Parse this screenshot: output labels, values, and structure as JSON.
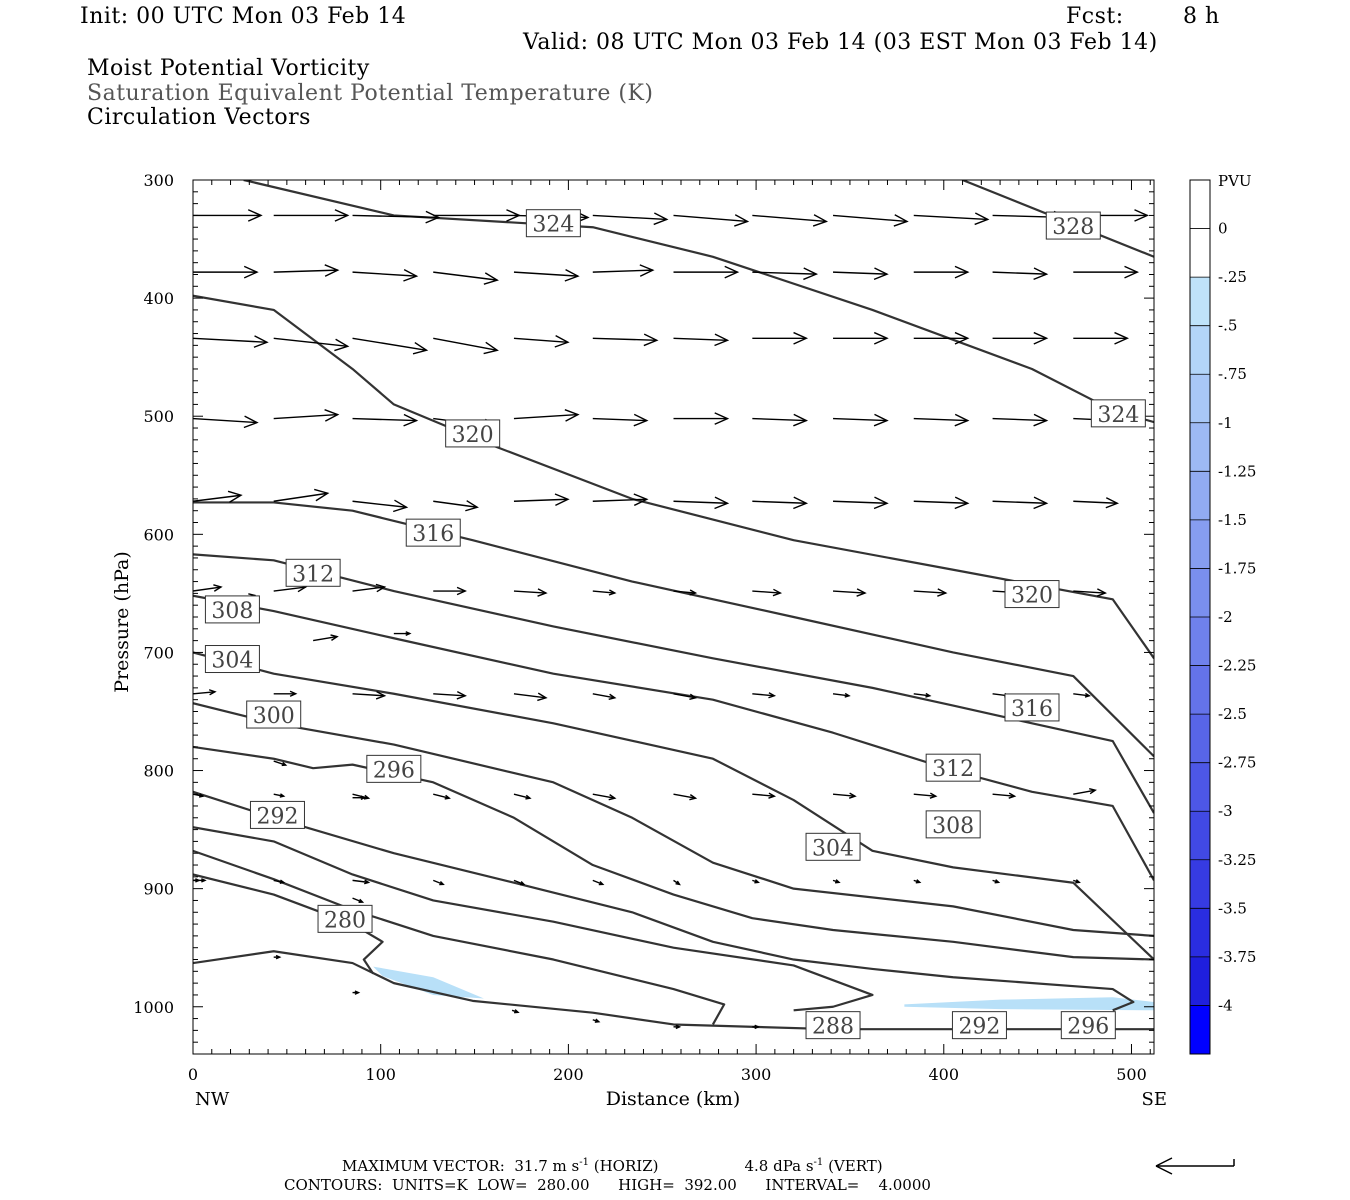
{
  "header": {
    "init": "Init: 00 UTC Mon 03 Feb 14",
    "fcst_label": "Fcst:",
    "fcst_value": "8 h",
    "valid": "Valid: 08 UTC Mon 03 Feb 14 (03 EST Mon 03 Feb 14)",
    "line1": "Moist Potential Vorticity",
    "line2": "Saturation Equivalent Potential Temperature (K)",
    "line3": "Circulation Vectors"
  },
  "footer": {
    "max_vector": "MAXIMUM VECTOR:  31.7 m s",
    "max_exp": "-1",
    "horiz": " (HORIZ)",
    "vert_val": "4.8 dPa s",
    "vert_exp": "-1",
    "vert": " (VERT)",
    "contours": "CONTOURS:  UNITS=K  LOW=  280.00      HIGH=  392.00      INTERVAL=    4.0000"
  },
  "colors": {
    "contour": "#333333",
    "vector": "#000000",
    "pv_fill": "#b8e0f8",
    "colorbar": [
      "#ffffff",
      "#ffffff",
      "#bfe3fa",
      "#b3d5f8",
      "#a8c7f6",
      "#9db9f4",
      "#91abf2",
      "#869df0",
      "#7a8fee",
      "#6f81ec",
      "#6473ea",
      "#5865e8",
      "#4d57e6",
      "#4149e4",
      "#363be2",
      "#2a2de0",
      "#1f1fde",
      "#0000ff"
    ]
  },
  "chart_data": {
    "type": "contour",
    "xlabel": "Distance (km)",
    "ylabel": "Pressure (hPa)",
    "xlim": [
      0,
      512
    ],
    "ylim": [
      300,
      1040
    ],
    "y_log": false,
    "xticks": [
      0,
      100,
      200,
      300,
      400,
      500
    ],
    "yticks": [
      300,
      400,
      500,
      600,
      700,
      800,
      900,
      1000
    ],
    "x_end_labels": [
      "NW",
      "SE"
    ],
    "colorbar": {
      "title": "PVU",
      "labels": [
        "0",
        "-.25",
        "-.5",
        "-.75",
        "-1",
        "-1.25",
        "-1.5",
        "-1.75",
        "-2",
        "-2.25",
        "-2.5",
        "-2.75",
        "-3",
        "-3.25",
        "-3.5",
        "-3.75",
        "-4"
      ]
    },
    "contour_labels": [
      {
        "text": "324",
        "x": 192,
        "y": 337
      },
      {
        "text": "328",
        "x": 469,
        "y": 339
      },
      {
        "text": "324",
        "x": 493,
        "y": 498
      },
      {
        "text": "320",
        "x": 149,
        "y": 515
      },
      {
        "text": "316",
        "x": 128,
        "y": 599
      },
      {
        "text": "312",
        "x": 64,
        "y": 633
      },
      {
        "text": "308",
        "x": 21,
        "y": 664
      },
      {
        "text": "320",
        "x": 447,
        "y": 651
      },
      {
        "text": "304",
        "x": 21,
        "y": 706
      },
      {
        "text": "316",
        "x": 447,
        "y": 747
      },
      {
        "text": "300",
        "x": 43,
        "y": 753
      },
      {
        "text": "296",
        "x": 107,
        "y": 799
      },
      {
        "text": "312",
        "x": 405,
        "y": 798
      },
      {
        "text": "292",
        "x": 45,
        "y": 838
      },
      {
        "text": "308",
        "x": 405,
        "y": 846
      },
      {
        "text": "304",
        "x": 341,
        "y": 865
      },
      {
        "text": "280",
        "x": 81,
        "y": 926
      },
      {
        "text": "288",
        "x": 341,
        "y": 1016
      },
      {
        "text": "292",
        "x": 419,
        "y": 1016
      },
      {
        "text": "296",
        "x": 477,
        "y": 1016
      }
    ],
    "contours": [
      [
        [
          27,
          300
        ],
        [
          107,
          330
        ],
        [
          213,
          340
        ],
        [
          277,
          365
        ],
        [
          362,
          410
        ],
        [
          447,
          460
        ],
        [
          490,
          495
        ],
        [
          512,
          505
        ]
      ],
      [
        [
          410,
          300
        ],
        [
          512,
          365
        ]
      ],
      [
        [
          0,
          398
        ],
        [
          43,
          410
        ],
        [
          85,
          460
        ],
        [
          107,
          490
        ],
        [
          160,
          525
        ],
        [
          234,
          570
        ],
        [
          320,
          605
        ],
        [
          405,
          630
        ],
        [
          490,
          655
        ],
        [
          512,
          705
        ]
      ],
      [
        [
          0,
          573
        ],
        [
          43,
          573
        ],
        [
          85,
          580
        ],
        [
          149,
          605
        ],
        [
          234,
          640
        ],
        [
          320,
          670
        ],
        [
          405,
          700
        ],
        [
          469,
          720
        ],
        [
          512,
          788
        ]
      ],
      [
        [
          0,
          617
        ],
        [
          43,
          622
        ],
        [
          107,
          648
        ],
        [
          192,
          678
        ],
        [
          277,
          705
        ],
        [
          362,
          730
        ],
        [
          405,
          745
        ],
        [
          447,
          760
        ],
        [
          490,
          775
        ],
        [
          512,
          836
        ]
      ],
      [
        [
          0,
          652
        ],
        [
          43,
          665
        ],
        [
          107,
          688
        ],
        [
          192,
          718
        ],
        [
          277,
          740
        ],
        [
          341,
          768
        ],
        [
          405,
          800
        ],
        [
          447,
          818
        ],
        [
          490,
          830
        ],
        [
          512,
          893
        ]
      ],
      [
        [
          0,
          700
        ],
        [
          43,
          718
        ],
        [
          107,
          735
        ],
        [
          192,
          760
        ],
        [
          277,
          790
        ],
        [
          320,
          825
        ],
        [
          362,
          868
        ],
        [
          405,
          882
        ],
        [
          469,
          895
        ],
        [
          512,
          960
        ]
      ],
      [
        [
          0,
          743
        ],
        [
          43,
          760
        ],
        [
          107,
          778
        ],
        [
          192,
          810
        ],
        [
          234,
          840
        ],
        [
          277,
          878
        ],
        [
          320,
          900
        ],
        [
          405,
          915
        ],
        [
          469,
          935
        ],
        [
          512,
          940
        ]
      ],
      [
        [
          0,
          780
        ],
        [
          43,
          790
        ],
        [
          64,
          798
        ],
        [
          85,
          795
        ],
        [
          128,
          810
        ],
        [
          171,
          840
        ],
        [
          213,
          880
        ],
        [
          256,
          905
        ],
        [
          298,
          925
        ],
        [
          341,
          935
        ],
        [
          405,
          945
        ],
        [
          469,
          958
        ],
        [
          512,
          960
        ]
      ],
      [
        [
          0,
          818
        ],
        [
          43,
          840
        ],
        [
          107,
          870
        ],
        [
          171,
          895
        ],
        [
          234,
          920
        ],
        [
          277,
          945
        ],
        [
          320,
          960
        ],
        [
          362,
          968
        ],
        [
          405,
          975
        ],
        [
          490,
          985
        ],
        [
          501,
          996
        ],
        [
          490,
          1003
        ]
      ],
      [
        [
          0,
          848
        ],
        [
          43,
          860
        ],
        [
          85,
          888
        ],
        [
          128,
          910
        ],
        [
          192,
          928
        ],
        [
          256,
          950
        ],
        [
          320,
          965
        ],
        [
          362,
          990
        ],
        [
          341,
          1000
        ],
        [
          320,
          1003
        ]
      ],
      [
        [
          0,
          868
        ],
        [
          43,
          892
        ],
        [
          85,
          918
        ],
        [
          128,
          940
        ],
        [
          192,
          960
        ],
        [
          256,
          985
        ],
        [
          283,
          998
        ],
        [
          277,
          1015
        ]
      ],
      [
        [
          0,
          888
        ],
        [
          43,
          905
        ],
        [
          85,
          930
        ],
        [
          101,
          945
        ],
        [
          91,
          960
        ],
        [
          96,
          972
        ]
      ],
      [
        [
          0,
          963
        ],
        [
          43,
          953
        ],
        [
          85,
          963
        ],
        [
          107,
          980
        ],
        [
          149,
          995
        ],
        [
          213,
          1005
        ],
        [
          256,
          1015
        ],
        [
          341,
          1019
        ],
        [
          512,
          1019
        ]
      ]
    ],
    "pv_regions": [
      {
        "min": -0.5,
        "max": -0.25,
        "polygon": [
          [
            96,
            966
          ],
          [
            128,
            975
          ],
          [
            155,
            993
          ],
          [
            128,
            990
          ],
          [
            101,
            974
          ]
        ]
      },
      {
        "min": -0.5,
        "max": -0.25,
        "polygon": [
          [
            379,
            998
          ],
          [
            430,
            994
          ],
          [
            490,
            992
          ],
          [
            512,
            996
          ],
          [
            512,
            1003
          ],
          [
            430,
            1002
          ],
          [
            379,
            1000
          ]
        ]
      }
    ],
    "vectors": {
      "rows": [
        330,
        378,
        434,
        502,
        572,
        648,
        735,
        820,
        893
      ],
      "cols": [
        0,
        43,
        85,
        128,
        171,
        213,
        256,
        298,
        341,
        384,
        426,
        469
      ],
      "u": [
        [
          34,
          37,
          43,
          43,
          37,
          37,
          37,
          37,
          37,
          37,
          37,
          37
        ],
        [
          32,
          32,
          32,
          32,
          32,
          30,
          32,
          32,
          27,
          27,
          27,
          32
        ],
        [
          37,
          37,
          37,
          32,
          27,
          32,
          27,
          27,
          27,
          27,
          27,
          27
        ],
        [
          32,
          32,
          32,
          32,
          32,
          27,
          27,
          27,
          27,
          27,
          27,
          22
        ],
        [
          24,
          27,
          27,
          22,
          27,
          27,
          27,
          27,
          27,
          27,
          27,
          22
        ],
        [
          14,
          16,
          16,
          16,
          16,
          11,
          11,
          14,
          16,
          16,
          16,
          16
        ],
        [
          11,
          11,
          16,
          16,
          16,
          11,
          11,
          11,
          8,
          8,
          8,
          8
        ],
        [
          5,
          5,
          8,
          8,
          8,
          11,
          11,
          11,
          11,
          11,
          11,
          11
        ],
        [
          3,
          5,
          8,
          5,
          5,
          5,
          3,
          3,
          3,
          3,
          3,
          3
        ]
      ],
      "v": [
        [
          0,
          0,
          1,
          0,
          1,
          2,
          3,
          3,
          3,
          2,
          1,
          0
        ],
        [
          0,
          -1,
          2,
          4,
          2,
          -1,
          0,
          1,
          1,
          0,
          1,
          0
        ],
        [
          2,
          4,
          6,
          6,
          2,
          1,
          1,
          0,
          0,
          0,
          0,
          0
        ],
        [
          2,
          -2,
          1,
          4,
          -2,
          1,
          0,
          1,
          1,
          1,
          1,
          1
        ],
        [
          -3,
          -4,
          3,
          3,
          -1,
          -1,
          1,
          1,
          1,
          1,
          1,
          1
        ],
        [
          -2,
          -2,
          -2,
          0,
          1,
          1,
          1,
          1,
          1,
          1,
          1,
          1
        ],
        [
          -1,
          0,
          1,
          1,
          2,
          2,
          2,
          1,
          1,
          1,
          1,
          1
        ],
        [
          1,
          1,
          2,
          2,
          2,
          2,
          2,
          1,
          1,
          1,
          1,
          -2
        ],
        [
          0,
          1,
          1,
          2,
          2,
          2,
          2,
          1,
          1,
          1,
          1,
          1
        ]
      ]
    },
    "sparse_vectors": [
      {
        "x": 21,
        "y": 655,
        "u": 11,
        "v": -2
      },
      {
        "x": 64,
        "y": 690,
        "u": 12,
        "v": -2
      },
      {
        "x": 107,
        "y": 684,
        "u": 8,
        "v": 0
      },
      {
        "x": 43,
        "y": 792,
        "u": 6,
        "v": 2
      },
      {
        "x": 85,
        "y": 823,
        "u": 6,
        "v": 0
      },
      {
        "x": 0,
        "y": 893,
        "u": 6,
        "v": 0
      },
      {
        "x": 85,
        "y": 908,
        "u": 5,
        "v": 2
      },
      {
        "x": 43,
        "y": 958,
        "u": 3,
        "v": 0
      },
      {
        "x": 85,
        "y": 988,
        "u": 3,
        "v": 0
      },
      {
        "x": 170,
        "y": 1003,
        "u": 3,
        "v": 1
      },
      {
        "x": 213,
        "y": 1011,
        "u": 3,
        "v": 1
      },
      {
        "x": 256,
        "y": 1017,
        "u": 3,
        "v": 0
      },
      {
        "x": 298,
        "y": 1017,
        "u": 3,
        "v": 0
      }
    ]
  }
}
